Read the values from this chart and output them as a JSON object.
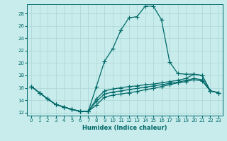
{
  "xlabel": "Humidex (Indice chaleur)",
  "bg_color": "#c8ecec",
  "grid_color": "#b0d8d8",
  "line_color": "#006868",
  "xlim": [
    -0.5,
    23.5
  ],
  "ylim": [
    11.5,
    29.5
  ],
  "xticks": [
    0,
    1,
    2,
    3,
    4,
    5,
    6,
    7,
    8,
    9,
    10,
    11,
    12,
    13,
    14,
    15,
    16,
    17,
    18,
    19,
    20,
    21,
    22,
    23
  ],
  "yticks": [
    12,
    14,
    16,
    18,
    20,
    22,
    24,
    26,
    28
  ],
  "line_peak_x": [
    0,
    1,
    2,
    3,
    4,
    5,
    6,
    7,
    8,
    9,
    10,
    11,
    12,
    13,
    14,
    15,
    16,
    17,
    18,
    19,
    20,
    21,
    22,
    23
  ],
  "line_peak_y": [
    16.2,
    15.2,
    14.2,
    13.3,
    12.9,
    12.5,
    12.2,
    12.2,
    16.2,
    20.3,
    22.3,
    25.3,
    27.3,
    27.5,
    29.2,
    29.2,
    27.0,
    20.2,
    18.3,
    18.2,
    18.2,
    18.0,
    15.5,
    15.2
  ],
  "line_upper_x": [
    0,
    1,
    2,
    3,
    4,
    5,
    6,
    7,
    8,
    9,
    10,
    11,
    12,
    13,
    14,
    15,
    16,
    17,
    18,
    19,
    20,
    21,
    22,
    23
  ],
  "line_upper_y": [
    16.2,
    15.2,
    14.2,
    13.3,
    12.9,
    12.5,
    12.2,
    12.2,
    14.2,
    15.5,
    15.8,
    16.0,
    16.2,
    16.3,
    16.5,
    16.6,
    16.8,
    17.0,
    17.2,
    17.5,
    18.2,
    18.0,
    15.5,
    15.2
  ],
  "line_mid_x": [
    0,
    1,
    2,
    3,
    4,
    5,
    6,
    7,
    8,
    9,
    10,
    11,
    12,
    13,
    14,
    15,
    16,
    17,
    18,
    19,
    20,
    21,
    22,
    23
  ],
  "line_mid_y": [
    16.2,
    15.2,
    14.2,
    13.3,
    12.9,
    12.5,
    12.2,
    12.2,
    13.8,
    15.0,
    15.3,
    15.5,
    15.7,
    15.9,
    16.1,
    16.3,
    16.5,
    16.7,
    16.9,
    17.2,
    17.5,
    17.3,
    15.5,
    15.2
  ],
  "line_lower_x": [
    0,
    1,
    2,
    3,
    4,
    5,
    6,
    7,
    8,
    9,
    10,
    11,
    12,
    13,
    14,
    15,
    16,
    17,
    18,
    19,
    20,
    21,
    22,
    23
  ],
  "line_lower_y": [
    16.2,
    15.2,
    14.2,
    13.3,
    12.9,
    12.5,
    12.2,
    12.2,
    13.2,
    14.5,
    14.8,
    15.0,
    15.2,
    15.4,
    15.7,
    15.9,
    16.2,
    16.5,
    16.8,
    17.0,
    17.3,
    17.1,
    15.5,
    15.2
  ]
}
